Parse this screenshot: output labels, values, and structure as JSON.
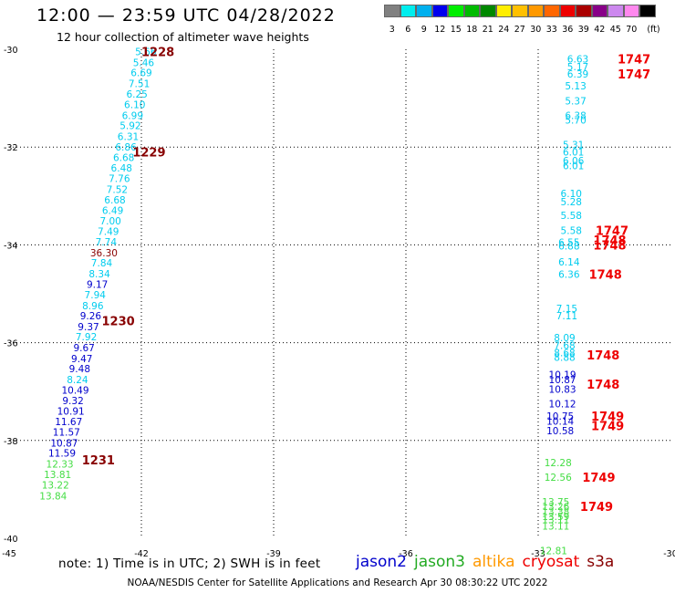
{
  "title": "12:00 — 23:59 UTC 04/28/2022",
  "subtitle": "12 hour collection of altimeter wave heights",
  "note": "note:  1) Time is in UTC;  2) SWH is in feet",
  "credit": "NOAA/NESDIS Center for Satellite Applications and Research    Apr 30 08:30:22 UTC 2022",
  "satellites": [
    {
      "name": "jason2",
      "color": "#0000cc"
    },
    {
      "name": "jason3",
      "color": "#22aa22"
    },
    {
      "name": "altika",
      "color": "#ff9900"
    },
    {
      "name": "cryosat",
      "color": "#ee0000"
    },
    {
      "name": "s3a",
      "color": "#880000"
    }
  ],
  "colorbar": {
    "unit": "(ft)",
    "bins": [
      {
        "label": "3",
        "color": "#808080"
      },
      {
        "label": "6",
        "color": "#00eeee"
      },
      {
        "label": "9",
        "color": "#00b0ee"
      },
      {
        "label": "12",
        "color": "#0000ee"
      },
      {
        "label": "15",
        "color": "#00ee00"
      },
      {
        "label": "18",
        "color": "#00bb00"
      },
      {
        "label": "21",
        "color": "#008800"
      },
      {
        "label": "24",
        "color": "#ffee00"
      },
      {
        "label": "27",
        "color": "#ffc000"
      },
      {
        "label": "30",
        "color": "#ff9900"
      },
      {
        "label": "33",
        "color": "#ff6600"
      },
      {
        "label": "36",
        "color": "#ee0000"
      },
      {
        "label": "39",
        "color": "#aa0000"
      },
      {
        "label": "42",
        "color": "#880088"
      },
      {
        "label": "45",
        "color": "#cc88ee"
      },
      {
        "label": "70",
        "color": "#ff88ee"
      },
      {
        "label": "",
        "color": "#000000"
      }
    ]
  },
  "chart_data": {
    "type": "scatter",
    "xlim": [
      -45,
      -30
    ],
    "ylim": [
      -40,
      -30
    ],
    "xticks": [
      -45,
      -42,
      -39,
      -36,
      -33,
      -30
    ],
    "xtick_labels": [
      "-45",
      "-42",
      "-39",
      "-36",
      "-33",
      "-30"
    ],
    "yticks": [
      -30,
      -32,
      -34,
      -36,
      -38,
      -40
    ],
    "ytick_labels": [
      "-30",
      "-32",
      "-34",
      "-36",
      "-38",
      "-40"
    ],
    "grid": true,
    "track1": [
      {
        "x": -41.9,
        "y": -30.05,
        "v": "5.66",
        "c": "#00ccee"
      },
      {
        "x": -41.95,
        "y": -30.27,
        "v": "5.46",
        "c": "#00ccee"
      },
      {
        "x": -42.0,
        "y": -30.48,
        "v": "6.69",
        "c": "#00ccee"
      },
      {
        "x": -42.05,
        "y": -30.7,
        "v": "7.51",
        "c": "#00ccee"
      },
      {
        "x": -42.1,
        "y": -30.91,
        "v": "6.25",
        "c": "#00ccee"
      },
      {
        "x": -42.15,
        "y": -31.13,
        "v": "6.10",
        "c": "#00ccee"
      },
      {
        "x": -42.2,
        "y": -31.35,
        "v": "6.99",
        "c": "#00ccee"
      },
      {
        "x": -42.25,
        "y": -31.56,
        "v": "5.92",
        "c": "#00ccee"
      },
      {
        "x": -42.3,
        "y": -31.78,
        "v": "6.31",
        "c": "#00ccee"
      },
      {
        "x": -42.35,
        "y": -32.0,
        "v": "6.86",
        "c": "#00ccee"
      },
      {
        "x": -42.4,
        "y": -32.21,
        "v": "6.68",
        "c": "#00ccee"
      },
      {
        "x": -42.45,
        "y": -32.43,
        "v": "6.48",
        "c": "#00ccee"
      },
      {
        "x": -42.5,
        "y": -32.64,
        "v": "7.76",
        "c": "#00ccee"
      },
      {
        "x": -42.55,
        "y": -32.86,
        "v": "7.52",
        "c": "#00ccee"
      },
      {
        "x": -42.6,
        "y": -33.08,
        "v": "6.68",
        "c": "#00ccee"
      },
      {
        "x": -42.65,
        "y": -33.29,
        "v": "6.49",
        "c": "#00ccee"
      },
      {
        "x": -42.7,
        "y": -33.51,
        "v": "7.00",
        "c": "#00ccee"
      },
      {
        "x": -42.75,
        "y": -33.72,
        "v": "7.49",
        "c": "#00ccee"
      },
      {
        "x": -42.8,
        "y": -33.94,
        "v": "7.74",
        "c": "#00ccee"
      },
      {
        "x": -42.85,
        "y": -34.16,
        "v": "36.30",
        "c": "#880000"
      },
      {
        "x": -42.9,
        "y": -34.37,
        "v": "7.84",
        "c": "#00ccee"
      },
      {
        "x": -42.95,
        "y": -34.59,
        "v": "8.34",
        "c": "#00ccee"
      },
      {
        "x": -43.0,
        "y": -34.8,
        "v": "9.17",
        "c": "#0000cc"
      },
      {
        "x": -43.05,
        "y": -35.02,
        "v": "7.94",
        "c": "#00ccee"
      },
      {
        "x": -43.1,
        "y": -35.24,
        "v": "8.96",
        "c": "#00ccee"
      },
      {
        "x": -43.15,
        "y": -35.45,
        "v": "9.26",
        "c": "#0000cc"
      },
      {
        "x": -43.2,
        "y": -35.67,
        "v": "9.37",
        "c": "#0000cc"
      },
      {
        "x": -43.25,
        "y": -35.88,
        "v": "7.92",
        "c": "#00ccee"
      },
      {
        "x": -43.3,
        "y": -36.1,
        "v": "9.67",
        "c": "#0000cc"
      },
      {
        "x": -43.35,
        "y": -36.32,
        "v": "9.47",
        "c": "#0000cc"
      },
      {
        "x": -43.4,
        "y": -36.53,
        "v": "9.48",
        "c": "#0000cc"
      },
      {
        "x": -43.45,
        "y": -36.75,
        "v": "8.24",
        "c": "#00ccee"
      },
      {
        "x": -43.5,
        "y": -36.97,
        "v": "10.49",
        "c": "#0000cc"
      },
      {
        "x": -43.55,
        "y": -37.18,
        "v": "9.32",
        "c": "#0000cc"
      },
      {
        "x": -43.6,
        "y": -37.4,
        "v": "10.91",
        "c": "#0000cc"
      },
      {
        "x": -43.65,
        "y": -37.61,
        "v": "11.67",
        "c": "#0000cc"
      },
      {
        "x": -43.7,
        "y": -37.83,
        "v": "11.57",
        "c": "#0000cc"
      },
      {
        "x": -43.75,
        "y": -38.05,
        "v": "10.87",
        "c": "#0000cc"
      },
      {
        "x": -43.8,
        "y": -38.26,
        "v": "11.59",
        "c": "#0000cc"
      },
      {
        "x": -43.85,
        "y": -38.48,
        "v": "12.33",
        "c": "#44dd44"
      },
      {
        "x": -43.9,
        "y": -38.69,
        "v": "13.81",
        "c": "#44dd44"
      },
      {
        "x": -43.95,
        "y": -38.91,
        "v": "13.22",
        "c": "#44dd44"
      },
      {
        "x": -44.0,
        "y": -39.13,
        "v": "13.84",
        "c": "#44dd44"
      }
    ],
    "track1_times": [
      {
        "x": -42.0,
        "y": -30.05,
        "t": "1228"
      },
      {
        "x": -42.2,
        "y": -32.1,
        "t": "1229"
      },
      {
        "x": -42.9,
        "y": -35.55,
        "t": "1230"
      },
      {
        "x": -43.35,
        "y": -38.4,
        "t": "1231"
      }
    ],
    "track2": [
      {
        "x": -32.1,
        "y": -30.2,
        "v": "6.63",
        "c": "#00ccee"
      },
      {
        "x": -32.1,
        "y": -30.35,
        "v": "5.17",
        "c": "#00ccee"
      },
      {
        "x": -32.1,
        "y": -30.5,
        "v": "6.39",
        "c": "#00ccee"
      },
      {
        "x": -32.15,
        "y": -30.75,
        "v": "5.13",
        "c": "#00ccee"
      },
      {
        "x": -32.15,
        "y": -31.05,
        "v": "5.37",
        "c": "#00ccee"
      },
      {
        "x": -32.15,
        "y": -31.35,
        "v": "6.38",
        "c": "#00ccee"
      },
      {
        "x": -32.15,
        "y": -31.45,
        "v": "5.70",
        "c": "#00ccee"
      },
      {
        "x": -32.2,
        "y": -31.95,
        "v": "5.31",
        "c": "#00ccee"
      },
      {
        "x": -32.2,
        "y": -32.1,
        "v": "6.01",
        "c": "#00ccee"
      },
      {
        "x": -32.2,
        "y": -32.28,
        "v": "6.06",
        "c": "#00ccee"
      },
      {
        "x": -32.2,
        "y": -32.38,
        "v": "6.01",
        "c": "#00ccee"
      },
      {
        "x": -32.25,
        "y": -32.95,
        "v": "6.10",
        "c": "#00ccee"
      },
      {
        "x": -32.25,
        "y": -33.12,
        "v": "5.28",
        "c": "#00ccee"
      },
      {
        "x": -32.25,
        "y": -33.4,
        "v": "5.58",
        "c": "#00ccee"
      },
      {
        "x": -32.25,
        "y": -33.7,
        "v": "5.58",
        "c": "#00ccee"
      },
      {
        "x": -32.3,
        "y": -33.95,
        "v": "6.55",
        "c": "#00ccee"
      },
      {
        "x": -32.3,
        "y": -34.02,
        "v": "6.88",
        "c": "#00ccee"
      },
      {
        "x": -32.3,
        "y": -34.35,
        "v": "6.14",
        "c": "#00ccee"
      },
      {
        "x": -32.3,
        "y": -34.6,
        "v": "6.36",
        "c": "#00ccee"
      },
      {
        "x": -32.35,
        "y": -35.3,
        "v": "7.15",
        "c": "#00ccee"
      },
      {
        "x": -32.35,
        "y": -35.45,
        "v": "7.11",
        "c": "#00ccee"
      },
      {
        "x": -32.4,
        "y": -35.9,
        "v": "8.09",
        "c": "#00ccee"
      },
      {
        "x": -32.4,
        "y": -36.05,
        "v": "7.68",
        "c": "#00ccee"
      },
      {
        "x": -32.4,
        "y": -36.2,
        "v": "8.68",
        "c": "#00ccee"
      },
      {
        "x": -32.4,
        "y": -36.3,
        "v": "8.88",
        "c": "#00ccee"
      },
      {
        "x": -32.45,
        "y": -36.65,
        "v": "10.19",
        "c": "#0000cc"
      },
      {
        "x": -32.45,
        "y": -36.75,
        "v": "10.87",
        "c": "#0000cc"
      },
      {
        "x": -32.45,
        "y": -36.95,
        "v": "10.83",
        "c": "#0000cc"
      },
      {
        "x": -32.45,
        "y": -37.25,
        "v": "10.12",
        "c": "#0000cc"
      },
      {
        "x": -32.5,
        "y": -37.5,
        "v": "10.75",
        "c": "#0000cc"
      },
      {
        "x": -32.5,
        "y": -37.6,
        "v": "10.14",
        "c": "#0000cc"
      },
      {
        "x": -32.5,
        "y": -37.8,
        "v": "10.58",
        "c": "#0000cc"
      },
      {
        "x": -32.55,
        "y": -38.45,
        "v": "12.28",
        "c": "#44dd44"
      },
      {
        "x": -32.55,
        "y": -38.75,
        "v": "12.56",
        "c": "#44dd44"
      },
      {
        "x": -32.6,
        "y": -39.25,
        "v": "13.75",
        "c": "#44dd44"
      },
      {
        "x": -32.6,
        "y": -39.35,
        "v": "13.26",
        "c": "#44dd44"
      },
      {
        "x": -32.6,
        "y": -39.45,
        "v": "13.38",
        "c": "#44dd44"
      },
      {
        "x": -32.6,
        "y": -39.55,
        "v": "13.59",
        "c": "#44dd44"
      },
      {
        "x": -32.6,
        "y": -39.62,
        "v": "13.11",
        "c": "#44dd44"
      },
      {
        "x": -32.6,
        "y": -39.75,
        "v": "13.11",
        "c": "#44dd44"
      },
      {
        "x": -32.65,
        "y": -40.25,
        "v": "12.81",
        "c": "#44dd44"
      }
    ],
    "track2_times": [
      {
        "x": -31.2,
        "y": -30.2,
        "t": "1747"
      },
      {
        "x": -31.2,
        "y": -30.5,
        "t": "1747"
      },
      {
        "x": -31.7,
        "y": -33.7,
        "t": "1747"
      },
      {
        "x": -31.75,
        "y": -33.9,
        "t": "1748"
      },
      {
        "x": -31.75,
        "y": -34.0,
        "t": "1748"
      },
      {
        "x": -31.85,
        "y": -34.6,
        "t": "1748"
      },
      {
        "x": -31.9,
        "y": -36.25,
        "t": "1748"
      },
      {
        "x": -31.9,
        "y": -36.85,
        "t": "1748"
      },
      {
        "x": -31.8,
        "y": -37.5,
        "t": "1749"
      },
      {
        "x": -31.8,
        "y": -37.7,
        "t": "1749"
      },
      {
        "x": -32.0,
        "y": -38.75,
        "t": "1749"
      },
      {
        "x": -32.05,
        "y": -39.35,
        "t": "1749"
      }
    ]
  }
}
